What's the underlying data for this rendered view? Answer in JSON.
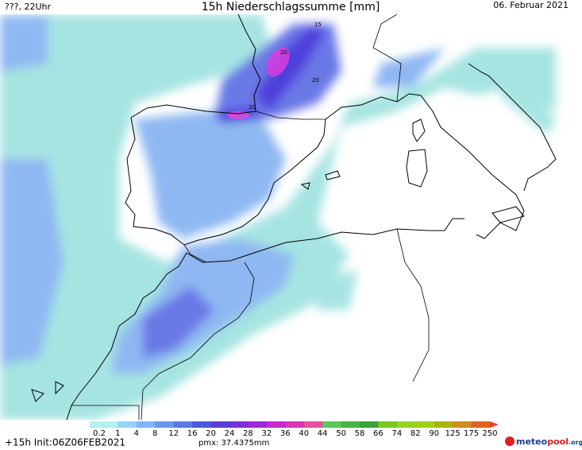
{
  "header": {
    "left": "???, 22Uhr",
    "title": "15h Niederschlagssumme [mm]",
    "right": "06. Februar 2021"
  },
  "map_labels": [
    "15",
    "20",
    "20",
    "20"
  ],
  "legend": {
    "labels": [
      "0.2",
      "1",
      "4",
      "8",
      "12",
      "16",
      "20",
      "24",
      "28",
      "32",
      "36",
      "40",
      "44",
      "50",
      "58",
      "66",
      "74",
      "82",
      "90",
      "125",
      "175",
      "250"
    ],
    "colors": [
      "#b4f0f0",
      "#96d2fa",
      "#82b4f5",
      "#6e96f0",
      "#5a78e6",
      "#4b5adc",
      "#5a3cdc",
      "#7832dc",
      "#a028dc",
      "#c828d2",
      "#dc32b4",
      "#e650a0",
      "#5ac85a",
      "#46b446",
      "#3ca03c",
      "#78c81e",
      "#96d21e",
      "#a0d214",
      "#aab40a",
      "#d28c1e",
      "#dc641e"
    ],
    "arrow_color": "#f03c28"
  },
  "footer": {
    "left": "+15h Init:06Z06FEB2021",
    "pmx": "pmx: 37.4375mm",
    "brand_a": "meteo",
    "brand_b": "pool",
    "brand_c": ".org"
  }
}
